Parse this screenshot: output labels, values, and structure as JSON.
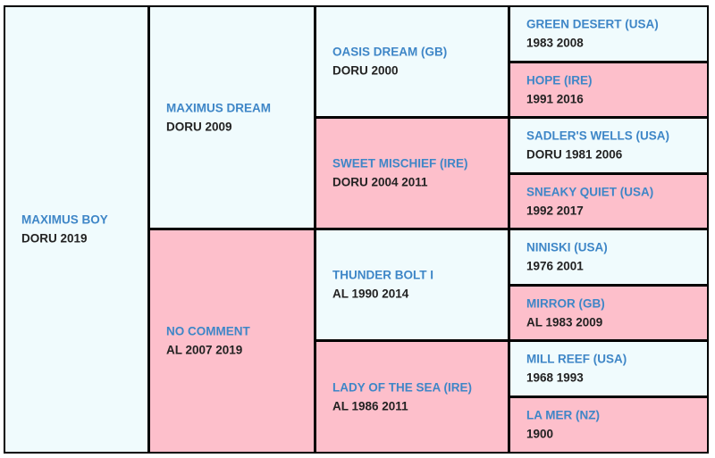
{
  "pedigree": {
    "gen1": [
      {
        "name": "MAXIMUS BOY",
        "info": "DORU 2019",
        "sex": "male"
      }
    ],
    "gen2": [
      {
        "name": "MAXIMUS DREAM",
        "info": "DORU 2009",
        "sex": "male"
      },
      {
        "name": "NO COMMENT",
        "info": "AL 2007 2019",
        "sex": "female"
      }
    ],
    "gen3": [
      {
        "name": "OASIS DREAM (GB)",
        "info": "DORU 2000",
        "sex": "male"
      },
      {
        "name": "SWEET MISCHIEF (IRE)",
        "info": "DORU 2004 2011",
        "sex": "female"
      },
      {
        "name": "THUNDER BOLT I",
        "info": "AL 1990 2014",
        "sex": "male"
      },
      {
        "name": "LADY OF THE SEA (IRE)",
        "info": "AL 1986 2011",
        "sex": "female"
      }
    ],
    "gen4": [
      {
        "name": "GREEN DESERT (USA)",
        "info": "1983 2008",
        "sex": "male"
      },
      {
        "name": "HOPE (IRE)",
        "info": "1991 2016",
        "sex": "female"
      },
      {
        "name": "SADLER'S WELLS (USA)",
        "info": "DORU 1981 2006",
        "sex": "male"
      },
      {
        "name": "SNEAKY QUIET (USA)",
        "info": "1992 2017",
        "sex": "female"
      },
      {
        "name": "NINISKI (USA)",
        "info": "1976 2001",
        "sex": "male"
      },
      {
        "name": "MIRROR (GB)",
        "info": "AL 1983 2009",
        "sex": "female"
      },
      {
        "name": "MILL REEF (USA)",
        "info": "1968 1993",
        "sex": "male"
      },
      {
        "name": "LA MER (NZ)",
        "info": "1900",
        "sex": "female"
      }
    ]
  },
  "colors": {
    "male_bg": "#f0fbfd",
    "female_bg": "#fdbfcb",
    "name_text": "#3e86c7",
    "info_text": "#222222",
    "border": "#000000"
  }
}
